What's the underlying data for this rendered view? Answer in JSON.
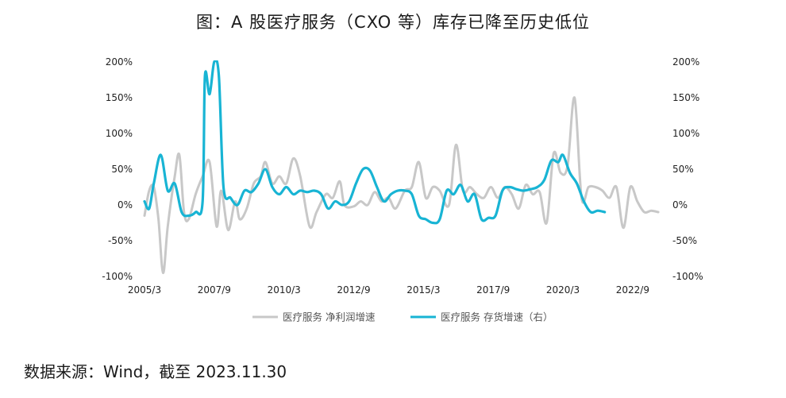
{
  "title": "图：A 股医疗服务（CXO 等）库存已降至历史低位",
  "source": "数据来源：Wind，截至 2023.11.30",
  "chart_data": {
    "type": "line",
    "title": "图：A 股医疗服务（CXO 等）库存已降至历史低位",
    "x_ticks": [
      "2005/3",
      "2007/9",
      "2010/3",
      "2012/9",
      "2015/3",
      "2017/9",
      "2020/3",
      "2022/9"
    ],
    "x_range": [
      "2005/3",
      "2023/9"
    ],
    "y_left": {
      "ticks": [
        "200%",
        "150%",
        "100%",
        "50%",
        "0%",
        "-50%",
        "-100%"
      ],
      "range": [
        -100,
        200
      ]
    },
    "y_right": {
      "ticks": [
        "200%",
        "150%",
        "100%",
        "50%",
        "0%",
        "-50%",
        "-100%"
      ],
      "range": [
        -100,
        200
      ]
    },
    "grid": false,
    "legend_position": "bottom-center",
    "series": [
      {
        "name": "医疗服务 净利润增速",
        "axis": "left",
        "color": "#c8c8c8",
        "points": [
          [
            "2005-03",
            -15
          ],
          [
            "2005-05",
            20
          ],
          [
            "2005-07",
            25
          ],
          [
            "2005-09",
            -20
          ],
          [
            "2005-11",
            -95
          ],
          [
            "2006-01",
            -30
          ],
          [
            "2006-04",
            40
          ],
          [
            "2006-06",
            70
          ],
          [
            "2006-08",
            -10
          ],
          [
            "2006-10",
            -20
          ],
          [
            "2007-01",
            15
          ],
          [
            "2007-04",
            40
          ],
          [
            "2007-07",
            60
          ],
          [
            "2007-10",
            -30
          ],
          [
            "2007-12",
            20
          ],
          [
            "2008-03",
            -35
          ],
          [
            "2008-06",
            5
          ],
          [
            "2008-08",
            -20
          ],
          [
            "2008-11",
            -5
          ],
          [
            "2009-02",
            30
          ],
          [
            "2009-05",
            40
          ],
          [
            "2009-07",
            60
          ],
          [
            "2009-10",
            30
          ],
          [
            "2010-01",
            40
          ],
          [
            "2010-04",
            30
          ],
          [
            "2010-07",
            65
          ],
          [
            "2010-10",
            40
          ],
          [
            "2011-02",
            -30
          ],
          [
            "2011-05",
            -10
          ],
          [
            "2011-09",
            15
          ],
          [
            "2011-12",
            10
          ],
          [
            "2012-03",
            33
          ],
          [
            "2012-05",
            0
          ],
          [
            "2012-09",
            -2
          ],
          [
            "2012-12",
            5
          ],
          [
            "2013-03",
            0
          ],
          [
            "2013-06",
            18
          ],
          [
            "2013-09",
            5
          ],
          [
            "2013-12",
            10
          ],
          [
            "2014-03",
            -5
          ],
          [
            "2014-07",
            20
          ],
          [
            "2014-10",
            25
          ],
          [
            "2015-01",
            60
          ],
          [
            "2015-04",
            10
          ],
          [
            "2015-07",
            25
          ],
          [
            "2015-10",
            20
          ],
          [
            "2016-02",
            0
          ],
          [
            "2016-05",
            84
          ],
          [
            "2016-08",
            20
          ],
          [
            "2016-11",
            25
          ],
          [
            "2017-02",
            15
          ],
          [
            "2017-05",
            10
          ],
          [
            "2017-08",
            25
          ],
          [
            "2017-11",
            10
          ],
          [
            "2018-02",
            25
          ],
          [
            "2018-05",
            15
          ],
          [
            "2018-08",
            -5
          ],
          [
            "2018-11",
            28
          ],
          [
            "2019-02",
            15
          ],
          [
            "2019-05",
            18
          ],
          [
            "2019-08",
            -25
          ],
          [
            "2019-11",
            72
          ],
          [
            "2020-02",
            45
          ],
          [
            "2020-05",
            55
          ],
          [
            "2020-08",
            150
          ],
          [
            "2020-11",
            10
          ],
          [
            "2021-02",
            25
          ],
          [
            "2021-05",
            25
          ],
          [
            "2021-08",
            20
          ],
          [
            "2021-11",
            10
          ],
          [
            "2022-02",
            25
          ],
          [
            "2022-05",
            -32
          ],
          [
            "2022-08",
            25
          ],
          [
            "2022-11",
            5
          ],
          [
            "2023-02",
            -10
          ],
          [
            "2023-05",
            -8
          ],
          [
            "2023-08",
            -10
          ]
        ]
      },
      {
        "name": "医疗服务 存货增速（右）",
        "axis": "right",
        "color": "#18b4d4",
        "points": [
          [
            "2005-03",
            5
          ],
          [
            "2005-05",
            -5
          ],
          [
            "2005-07",
            30
          ],
          [
            "2005-10",
            70
          ],
          [
            "2006-01",
            20
          ],
          [
            "2006-04",
            30
          ],
          [
            "2006-07",
            -10
          ],
          [
            "2006-10",
            -15
          ],
          [
            "2007-01",
            -10
          ],
          [
            "2007-04",
            5
          ],
          [
            "2007-05",
            180
          ],
          [
            "2007-07",
            155
          ],
          [
            "2007-09",
            200
          ],
          [
            "2007-11",
            180
          ],
          [
            "2008-01",
            25
          ],
          [
            "2008-04",
            10
          ],
          [
            "2008-07",
            0
          ],
          [
            "2008-10",
            20
          ],
          [
            "2009-01",
            18
          ],
          [
            "2009-04",
            30
          ],
          [
            "2009-07",
            50
          ],
          [
            "2009-10",
            25
          ],
          [
            "2010-01",
            15
          ],
          [
            "2010-04",
            25
          ],
          [
            "2010-07",
            15
          ],
          [
            "2010-10",
            20
          ],
          [
            "2011-01",
            18
          ],
          [
            "2011-04",
            20
          ],
          [
            "2011-07",
            15
          ],
          [
            "2011-10",
            -5
          ],
          [
            "2012-01",
            5
          ],
          [
            "2012-04",
            0
          ],
          [
            "2012-07",
            5
          ],
          [
            "2012-10",
            30
          ],
          [
            "2013-01",
            50
          ],
          [
            "2013-04",
            48
          ],
          [
            "2013-07",
            25
          ],
          [
            "2013-10",
            5
          ],
          [
            "2014-01",
            15
          ],
          [
            "2014-04",
            20
          ],
          [
            "2014-07",
            20
          ],
          [
            "2014-10",
            15
          ],
          [
            "2015-01",
            -15
          ],
          [
            "2015-04",
            -20
          ],
          [
            "2015-07",
            -25
          ],
          [
            "2015-10",
            -20
          ],
          [
            "2016-01",
            20
          ],
          [
            "2016-04",
            15
          ],
          [
            "2016-07",
            28
          ],
          [
            "2016-10",
            5
          ],
          [
            "2017-01",
            15
          ],
          [
            "2017-04",
            -20
          ],
          [
            "2017-07",
            -18
          ],
          [
            "2017-10",
            -15
          ],
          [
            "2018-01",
            20
          ],
          [
            "2018-04",
            25
          ],
          [
            "2018-07",
            22
          ],
          [
            "2018-10",
            20
          ],
          [
            "2019-01",
            22
          ],
          [
            "2019-04",
            25
          ],
          [
            "2019-07",
            35
          ],
          [
            "2019-10",
            62
          ],
          [
            "2020-01",
            60
          ],
          [
            "2020-03",
            70
          ],
          [
            "2020-06",
            45
          ],
          [
            "2020-09",
            30
          ],
          [
            "2020-12",
            5
          ],
          [
            "2021-03",
            -10
          ],
          [
            "2021-06",
            -8
          ],
          [
            "2021-09",
            -10
          ]
        ]
      }
    ]
  },
  "legend": [
    {
      "label": "医疗服务 净利润增速",
      "color": "#c8c8c8"
    },
    {
      "label": "医疗服务 存货增速（右）",
      "color": "#18b4d4"
    }
  ]
}
